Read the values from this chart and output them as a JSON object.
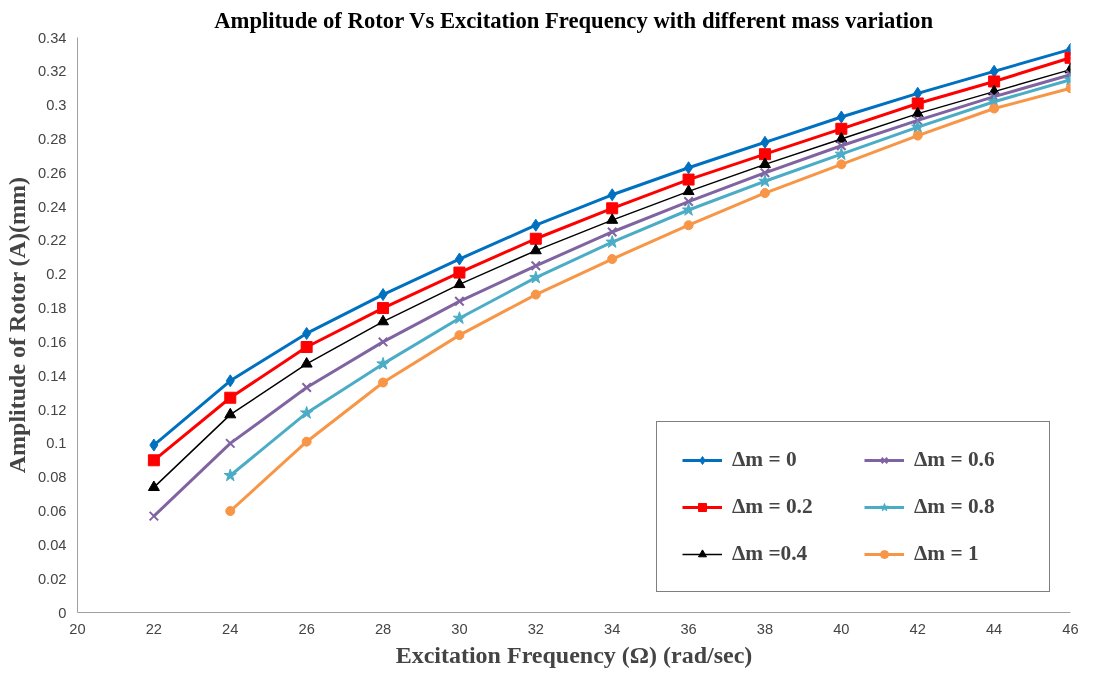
{
  "chart_data": {
    "type": "line",
    "title": "Amplitude of Rotor Vs Excitation Frequency with different mass variation",
    "xlabel": "Excitation Frequency (Ω) (rad/sec)",
    "ylabel": "Amplitude of Rotor (A)(mm)",
    "xlim": [
      20,
      46
    ],
    "xticks": [
      20,
      22,
      24,
      26,
      28,
      30,
      32,
      34,
      36,
      38,
      40,
      42,
      44,
      46
    ],
    "ylim": [
      0,
      0.34
    ],
    "yticks": [
      0,
      0.02,
      0.04,
      0.06,
      0.08,
      0.1,
      0.12,
      0.14,
      0.16,
      0.18,
      0.2,
      0.22,
      0.24,
      0.26,
      0.28,
      0.3,
      0.32,
      0.34
    ],
    "grid": false,
    "legend": "bottom right",
    "series": [
      {
        "name": "Δm = 0",
        "color": "#0070c0",
        "marker": "diamond",
        "x": [
          22,
          24,
          26,
          28,
          30,
          32,
          34,
          36,
          38,
          40,
          42,
          44,
          46
        ],
        "values": [
          0.099,
          0.137,
          0.165,
          0.188,
          0.209,
          0.229,
          0.247,
          0.263,
          0.278,
          0.293,
          0.307,
          0.32,
          0.333
        ]
      },
      {
        "name": "Δm = 0.2",
        "color": "#ff0000",
        "marker": "square",
        "x": [
          22,
          24,
          26,
          28,
          30,
          32,
          34,
          36,
          38,
          40,
          42,
          44,
          46
        ],
        "values": [
          0.09,
          0.127,
          0.157,
          0.18,
          0.201,
          0.221,
          0.239,
          0.256,
          0.271,
          0.286,
          0.301,
          0.314,
          0.328
        ]
      },
      {
        "name": "Δm =0.4",
        "color": "#000000",
        "marker": "triangle",
        "x": [
          22,
          24,
          26,
          28,
          30,
          32,
          34,
          36,
          38,
          40,
          42,
          44,
          46
        ],
        "values": [
          0.074,
          0.117,
          0.147,
          0.172,
          0.194,
          0.214,
          0.232,
          0.249,
          0.265,
          0.28,
          0.295,
          0.308,
          0.321
        ]
      },
      {
        "name": "Δm = 0.6",
        "color": "#8064a2",
        "marker": "cross",
        "x": [
          22,
          24,
          26,
          28,
          30,
          32,
          34,
          36,
          38,
          40,
          42,
          44,
          46
        ],
        "values": [
          0.057,
          0.1,
          0.133,
          0.16,
          0.184,
          0.205,
          0.225,
          0.243,
          0.26,
          0.276,
          0.291,
          0.305,
          0.318
        ]
      },
      {
        "name": "Δm = 0.8",
        "color": "#4bacc6",
        "marker": "star",
        "x": [
          24,
          26,
          28,
          30,
          32,
          34,
          36,
          38,
          40,
          42,
          44,
          46
        ],
        "values": [
          0.081,
          0.118,
          0.147,
          0.174,
          0.198,
          0.219,
          0.238,
          0.255,
          0.271,
          0.287,
          0.302,
          0.315
        ]
      },
      {
        "name": "Δm = 1",
        "color": "#f79646",
        "marker": "circle",
        "x": [
          24,
          26,
          28,
          30,
          32,
          34,
          36,
          38,
          40,
          42,
          44,
          46
        ],
        "values": [
          0.06,
          0.101,
          0.136,
          0.164,
          0.188,
          0.209,
          0.229,
          0.248,
          0.265,
          0.282,
          0.298,
          0.31
        ]
      }
    ]
  }
}
